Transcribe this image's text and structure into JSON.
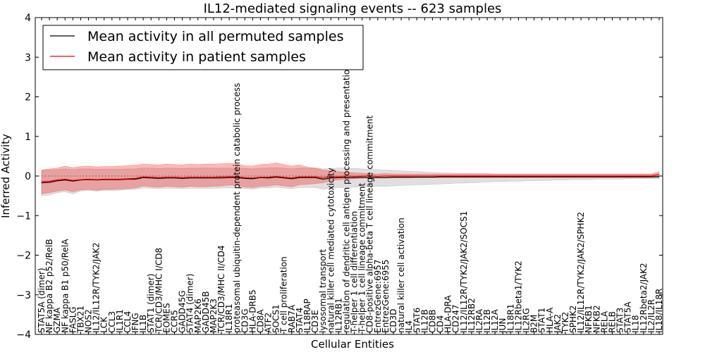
{
  "chart_data": {
    "type": "line",
    "title": "IL12-mediated signaling events -- 623 samples",
    "xlabel": "Cellular Entities",
    "ylabel": "Inferred Activity",
    "ylim": [
      -4,
      4
    ],
    "yticks": [
      -4,
      -3,
      -2,
      -1,
      0,
      1,
      2,
      3,
      4
    ],
    "zero_line": true,
    "grid": false,
    "legend_position": "top-left",
    "categories": [
      "STAT5A (dimer)",
      "NF kappa B2 p52/RelB",
      "GZMA",
      "NF kappa B1 p50/RelA",
      "FASLG",
      "TBX21",
      "NOS2",
      "IL12/IL12R/TYK2/JAK2",
      "LCK",
      "CCL3",
      "IL1R1",
      "CCL4",
      "IFNG",
      "IL1B",
      "STAT1 (dimer)",
      "TCR/CD3/MHC I/CD8",
      "EOMES",
      "CCR5",
      "GADD45G",
      "STAT4 (dimer)",
      "MAP2K6",
      "GADD45B",
      "MAP2K3",
      "TCR/CD3/MHC II/CD4",
      "IL18R1",
      "proteasomal ubiquitin-dependent protein catabolic process",
      "CD3G",
      "HLA-DRB5",
      "CD8A",
      "ATF2",
      "SOCS1",
      "T cell proliferation",
      "RAB7A",
      "STAT4",
      "IL18RAP",
      "CD3E",
      "lysosomal transport",
      "natural killer cell mediated cytotoxicity",
      "IL12RB1",
      "regulation of dendritic cell antigen processing and presentation",
      "T-helper 1 cell differentiation",
      "T-helper 1 cell lineage commitment",
      "CD8-positive alpha-beta T cell lineage commitment",
      "EntrezGene:6957",
      "EntrezGene:6955",
      "CD3D",
      "natural killer cell activation",
      "IL4",
      "STAT6",
      "IL12B",
      "CD8B",
      "CD4",
      "HLA-DRA",
      "CD247",
      "IL12/IL12R/TYK2/JAK2/SOCS1",
      "IL12RB2",
      "IL2RA",
      "IL12B",
      "IL12A",
      "JUN",
      "IL18R1",
      "IL12Rbeta1/TYK2",
      "IL2RG",
      "B2M",
      "STAT1",
      "HLA-A",
      "JAK2",
      "TYK2",
      "SPHK2",
      "IL12/IL12R/TYK2/JAK2/SPHK2",
      "NFKB1",
      "NFKB2",
      "RELA",
      "RELB",
      "STAT3",
      "STAT5A",
      "IL18",
      "IL12Rbeta2/JAK2",
      "IL2/IL2R",
      "IL18/IL18R"
    ],
    "series": [
      {
        "name": "Mean activity in all permuted samples",
        "color": "#000000",
        "values": [
          -0.17,
          -0.16,
          -0.12,
          -0.1,
          -0.13,
          -0.1,
          -0.09,
          -0.1,
          -0.09,
          -0.09,
          -0.09,
          -0.08,
          -0.08,
          -0.04,
          -0.05,
          -0.06,
          -0.05,
          -0.05,
          -0.06,
          -0.05,
          -0.05,
          -0.05,
          -0.05,
          -0.05,
          -0.04,
          -0.04,
          -0.06,
          -0.07,
          -0.04,
          -0.05,
          -0.03,
          -0.05,
          -0.07,
          -0.04,
          -0.04,
          -0.04,
          -0.08,
          -0.05,
          -0.04,
          -0.04,
          -0.04,
          -0.03,
          -0.04,
          -0.04,
          -0.04,
          -0.03,
          -0.03,
          -0.03,
          -0.03,
          -0.03,
          -0.03,
          -0.02,
          -0.02,
          -0.02,
          -0.02,
          -0.02,
          -0.02,
          -0.02,
          -0.02,
          -0.02,
          -0.02,
          -0.02,
          -0.02,
          -0.02,
          -0.02,
          -0.02,
          -0.02,
          -0.02,
          -0.02,
          -0.02,
          -0.02,
          -0.02,
          -0.02,
          -0.02,
          -0.02,
          -0.02,
          -0.02,
          -0.02,
          -0.02,
          -0.02
        ],
        "band_lower": [
          -0.5,
          -0.48,
          -0.42,
          -0.4,
          -0.45,
          -0.38,
          -0.36,
          -0.38,
          -0.36,
          -0.36,
          -0.36,
          -0.34,
          -0.34,
          -0.3,
          -0.31,
          -0.32,
          -0.31,
          -0.31,
          -0.32,
          -0.31,
          -0.31,
          -0.31,
          -0.31,
          -0.3,
          -0.3,
          -0.3,
          -0.32,
          -0.33,
          -0.3,
          -0.3,
          -0.28,
          -0.3,
          -0.32,
          -0.29,
          -0.29,
          -0.29,
          -0.33,
          -0.3,
          -0.29,
          -0.29,
          -0.28,
          -0.27,
          -0.27,
          -0.26,
          -0.26,
          -0.25,
          -0.24,
          -0.23,
          -0.22,
          -0.22,
          -0.21,
          -0.2,
          -0.19,
          -0.18,
          -0.18,
          -0.17,
          -0.16,
          -0.15,
          -0.14,
          -0.14,
          -0.13,
          -0.13,
          -0.12,
          -0.12,
          -0.11,
          -0.11,
          -0.1,
          -0.1,
          -0.09,
          -0.09,
          -0.09,
          -0.08,
          -0.08,
          -0.08,
          -0.08,
          -0.07,
          -0.07,
          -0.07,
          -0.07,
          -0.07
        ],
        "band_upper": [
          0.15,
          0.15,
          0.16,
          0.18,
          0.16,
          0.18,
          0.18,
          0.17,
          0.17,
          0.17,
          0.17,
          0.18,
          0.18,
          0.2,
          0.2,
          0.19,
          0.2,
          0.2,
          0.19,
          0.2,
          0.2,
          0.2,
          0.2,
          0.2,
          0.2,
          0.2,
          0.19,
          0.18,
          0.2,
          0.2,
          0.21,
          0.2,
          0.18,
          0.2,
          0.2,
          0.2,
          0.18,
          0.19,
          0.2,
          0.2,
          0.19,
          0.18,
          0.17,
          0.16,
          0.15,
          0.14,
          0.13,
          0.12,
          0.11,
          0.1,
          0.09,
          0.08,
          0.08,
          0.07,
          0.07,
          0.06,
          0.06,
          0.06,
          0.05,
          0.05,
          0.05,
          0.05,
          0.05,
          0.05,
          0.05,
          0.05,
          0.05,
          0.05,
          0.05,
          0.05,
          0.05,
          0.05,
          0.05,
          0.05,
          0.05,
          0.05,
          0.05,
          0.05,
          0.05,
          0.05
        ]
      },
      {
        "name": "Mean activity in patient samples",
        "color": "#ff0000",
        "values": [
          -0.14,
          -0.13,
          -0.1,
          -0.08,
          -0.11,
          -0.09,
          -0.08,
          -0.09,
          -0.08,
          -0.08,
          -0.08,
          -0.07,
          -0.06,
          -0.02,
          -0.03,
          -0.04,
          -0.03,
          -0.03,
          -0.04,
          -0.03,
          -0.03,
          -0.03,
          -0.03,
          -0.02,
          -0.01,
          -0.02,
          -0.04,
          -0.05,
          -0.03,
          -0.03,
          -0.01,
          -0.03,
          -0.05,
          -0.02,
          -0.02,
          -0.02,
          -0.04,
          -0.01,
          -0.02,
          0.0,
          -0.01,
          0.0,
          0.0,
          -0.01,
          0.0,
          0.0,
          0.0,
          0.0,
          0.0,
          0.0,
          0.0,
          0.0,
          0.0,
          0.0,
          0.0,
          0.0,
          0.0,
          0.0,
          0.0,
          0.0,
          0.0,
          0.0,
          0.0,
          0.0,
          0.0,
          0.0,
          0.0,
          0.0,
          0.0,
          0.0,
          0.0,
          0.0,
          0.0,
          0.0,
          0.0,
          0.0,
          0.0,
          0.0,
          0.0,
          0.04
        ],
        "band_lower": [
          -0.45,
          -0.42,
          -0.38,
          -0.35,
          -0.4,
          -0.35,
          -0.34,
          -0.36,
          -0.34,
          -0.34,
          -0.33,
          -0.32,
          -0.3,
          -0.25,
          -0.27,
          -0.28,
          -0.26,
          -0.27,
          -0.28,
          -0.26,
          -0.27,
          -0.27,
          -0.26,
          -0.25,
          -0.23,
          -0.24,
          -0.28,
          -0.29,
          -0.26,
          -0.25,
          -0.22,
          -0.25,
          -0.27,
          -0.22,
          -0.21,
          -0.19,
          -0.17,
          -0.12,
          -0.1,
          -0.08,
          -0.07,
          -0.06,
          -0.05,
          -0.05,
          -0.05,
          -0.05,
          -0.05,
          -0.05,
          -0.04,
          -0.04,
          -0.04,
          -0.04,
          -0.04,
          -0.04,
          -0.04,
          -0.04,
          -0.04,
          -0.04,
          -0.04,
          -0.04,
          -0.04,
          -0.04,
          -0.04,
          -0.04,
          -0.04,
          -0.04,
          -0.04,
          -0.04,
          -0.04,
          -0.04,
          -0.04,
          -0.04,
          -0.04,
          -0.04,
          -0.04,
          -0.04,
          -0.04,
          -0.04,
          -0.04,
          -0.03
        ],
        "band_upper": [
          0.15,
          0.18,
          0.2,
          0.25,
          0.21,
          0.24,
          0.25,
          0.23,
          0.24,
          0.24,
          0.25,
          0.26,
          0.27,
          0.3,
          0.29,
          0.28,
          0.3,
          0.29,
          0.28,
          0.3,
          0.29,
          0.3,
          0.3,
          0.31,
          0.32,
          0.3,
          0.26,
          0.25,
          0.29,
          0.3,
          0.33,
          0.29,
          0.25,
          0.28,
          0.22,
          0.2,
          0.15,
          0.13,
          0.11,
          0.09,
          0.08,
          0.07,
          0.06,
          0.05,
          0.06,
          0.05,
          0.05,
          0.05,
          0.05,
          0.05,
          0.05,
          0.05,
          0.05,
          0.05,
          0.05,
          0.05,
          0.05,
          0.05,
          0.05,
          0.05,
          0.05,
          0.05,
          0.05,
          0.05,
          0.05,
          0.05,
          0.05,
          0.05,
          0.05,
          0.05,
          0.05,
          0.05,
          0.05,
          0.05,
          0.05,
          0.05,
          0.05,
          0.05,
          0.05,
          0.11
        ]
      }
    ]
  }
}
